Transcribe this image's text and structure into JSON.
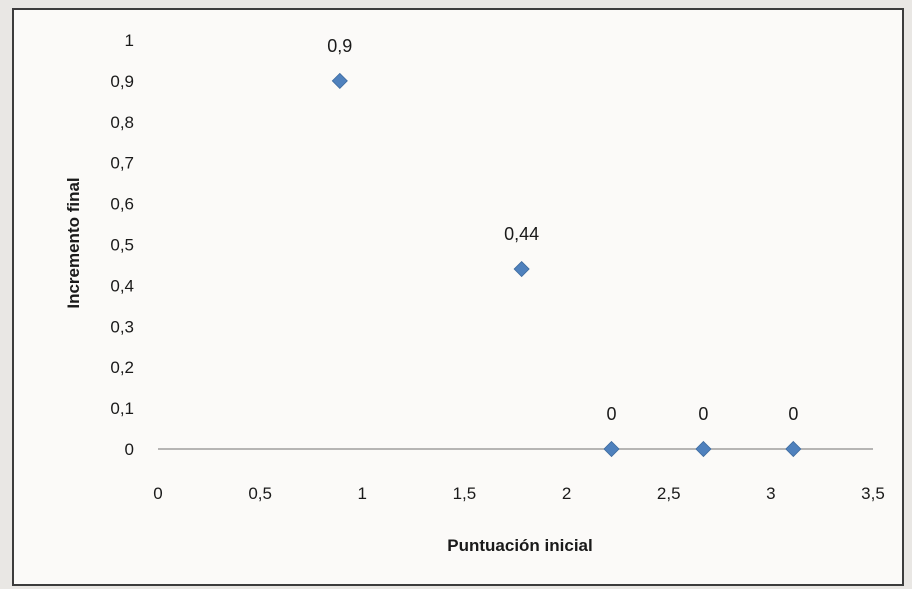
{
  "chart_data": {
    "type": "scatter",
    "title": "",
    "xlabel": "Puntuación inicial",
    "ylabel": "Incremento final",
    "xlim": [
      0,
      3.5
    ],
    "ylim": [
      0,
      1
    ],
    "x_ticks": [
      0,
      0.5,
      1,
      1.5,
      2,
      2.5,
      3,
      3.5
    ],
    "x_tick_labels": [
      "0",
      "0,5",
      "1",
      "1,5",
      "2",
      "2,5",
      "3",
      "3,5"
    ],
    "y_ticks": [
      0,
      0.1,
      0.2,
      0.3,
      0.4,
      0.5,
      0.6,
      0.7,
      0.8,
      0.9,
      1
    ],
    "y_tick_labels": [
      "0",
      "0,1",
      "0,2",
      "0,3",
      "0,4",
      "0,5",
      "0,6",
      "0,7",
      "0,8",
      "0,9",
      "1"
    ],
    "grid": false,
    "legend": "none",
    "marker": "diamond",
    "marker_color": "#4f81bd",
    "series": [
      {
        "points": [
          {
            "x": 0.89,
            "y": 0.9,
            "label": "0,9"
          },
          {
            "x": 1.78,
            "y": 0.44,
            "label": "0,44"
          },
          {
            "x": 2.22,
            "y": 0,
            "label": "0"
          },
          {
            "x": 2.67,
            "y": 0,
            "label": "0"
          },
          {
            "x": 3.11,
            "y": 0,
            "label": "0"
          }
        ]
      }
    ]
  }
}
